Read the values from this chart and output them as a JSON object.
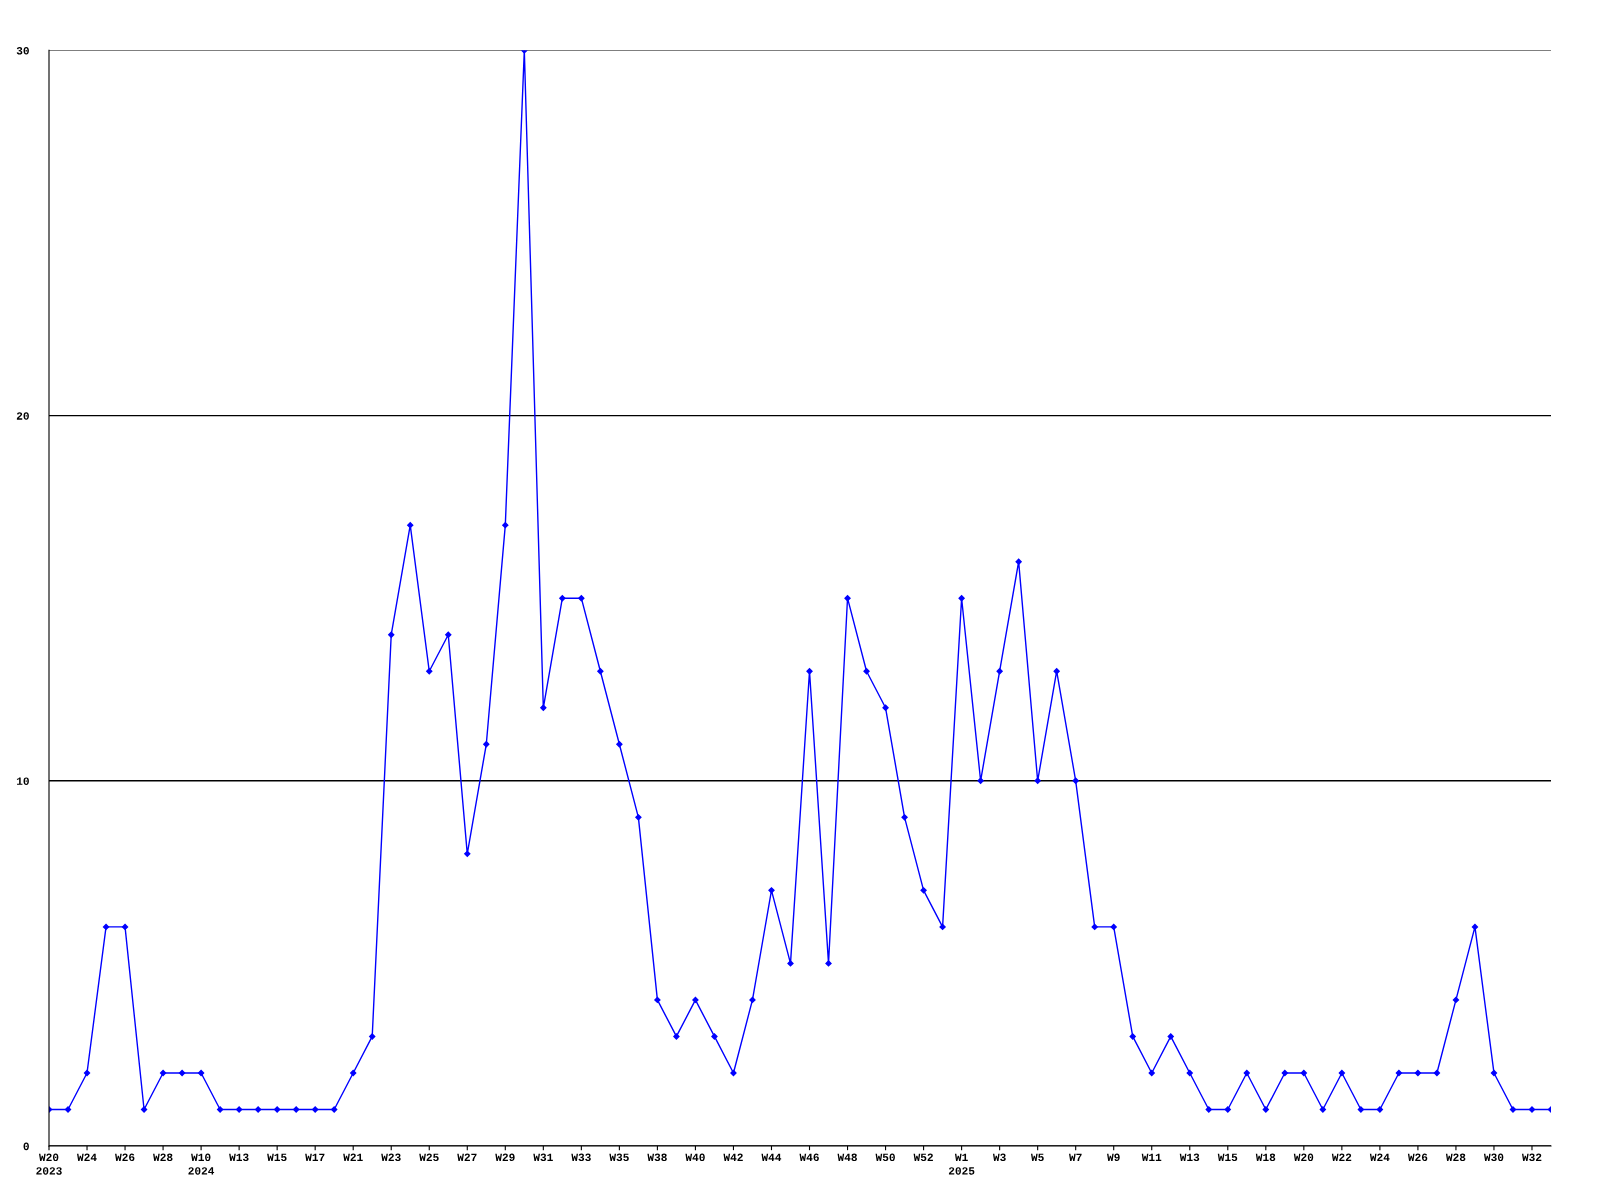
{
  "chart_data": {
    "type": "line",
    "categories": [
      "W20\n2023",
      null,
      "W24",
      null,
      "W26",
      null,
      "W28",
      null,
      "W10\n2024",
      null,
      "W13",
      null,
      "W15",
      null,
      "W17",
      null,
      "W21",
      null,
      "W23",
      null,
      "W25",
      null,
      "W27",
      null,
      "W29",
      null,
      "W31",
      null,
      "W33",
      null,
      "W35",
      null,
      "W38",
      null,
      "W40",
      null,
      "W42",
      null,
      "W44",
      null,
      "W46",
      null,
      "W48",
      null,
      "W50",
      null,
      "W52",
      null,
      "W1\n2025",
      null,
      "W3",
      null,
      "W5",
      null,
      "W7",
      null,
      "W9",
      null,
      "W11",
      null,
      "W13",
      null,
      "W15",
      null,
      "W18",
      null,
      "W20",
      null,
      "W22",
      null,
      "W24",
      null,
      "W26",
      null,
      "W28",
      null,
      "W30",
      null,
      "W32",
      null
    ],
    "series": [
      {
        "color": "#0000ff",
        "values": [
          1,
          1,
          2,
          6,
          6,
          1,
          2,
          2,
          2,
          1,
          1,
          1,
          1,
          1,
          1,
          1,
          2,
          3,
          14,
          17,
          13,
          14,
          8,
          11,
          17,
          30,
          12,
          15,
          15,
          13,
          11,
          9,
          4,
          3,
          4,
          3,
          2,
          4,
          7,
          5,
          13,
          5,
          15,
          13,
          12,
          9,
          7,
          6,
          15,
          10,
          13,
          16,
          10,
          13,
          10,
          6,
          6,
          3,
          2,
          3,
          2,
          1,
          1,
          2,
          1,
          2,
          2,
          1,
          2,
          1,
          1,
          2,
          2,
          2,
          4,
          6,
          2,
          1,
          1,
          1
        ]
      }
    ],
    "ylim": [
      0,
      30
    ],
    "yticks": [
      0,
      10,
      20,
      30
    ],
    "grid": "y",
    "marker": "diamond",
    "line_style": "solid",
    "legend": false
  }
}
